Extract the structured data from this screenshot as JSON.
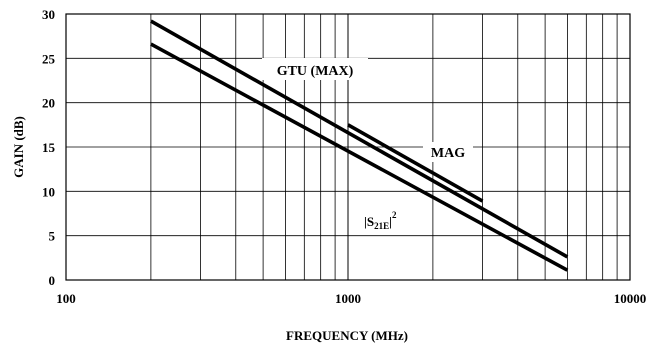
{
  "chart_data": {
    "type": "line",
    "xscale": "log",
    "xlim": [
      100,
      10000
    ],
    "ylim": [
      0,
      30
    ],
    "xticks": [
      100,
      1000,
      10000
    ],
    "yticks": [
      0,
      5,
      10,
      15,
      20,
      25,
      30
    ],
    "grid": true,
    "xlabel": "FREQUENCY (MHz)",
    "ylabel": "GAIN (dB)",
    "series": [
      {
        "name": "GTU (MAX)",
        "x": [
          200,
          6000
        ],
        "y": [
          29.2,
          2.6
        ]
      },
      {
        "name": "MAG",
        "x": [
          1000,
          3000
        ],
        "y": [
          17.5,
          8.9
        ]
      },
      {
        "name": "|S21E|2",
        "x": [
          200,
          6000
        ],
        "y": [
          26.6,
          1.1
        ]
      }
    ],
    "annotations": [
      {
        "text": "GTU (MAX)",
        "series": "GTU (MAX)"
      },
      {
        "text": "MAG",
        "series": "MAG"
      },
      {
        "text_main": "|S",
        "text_sub": "21E",
        "text_tail": "|",
        "text_sup": "2",
        "series": "|S21E|2"
      }
    ]
  }
}
